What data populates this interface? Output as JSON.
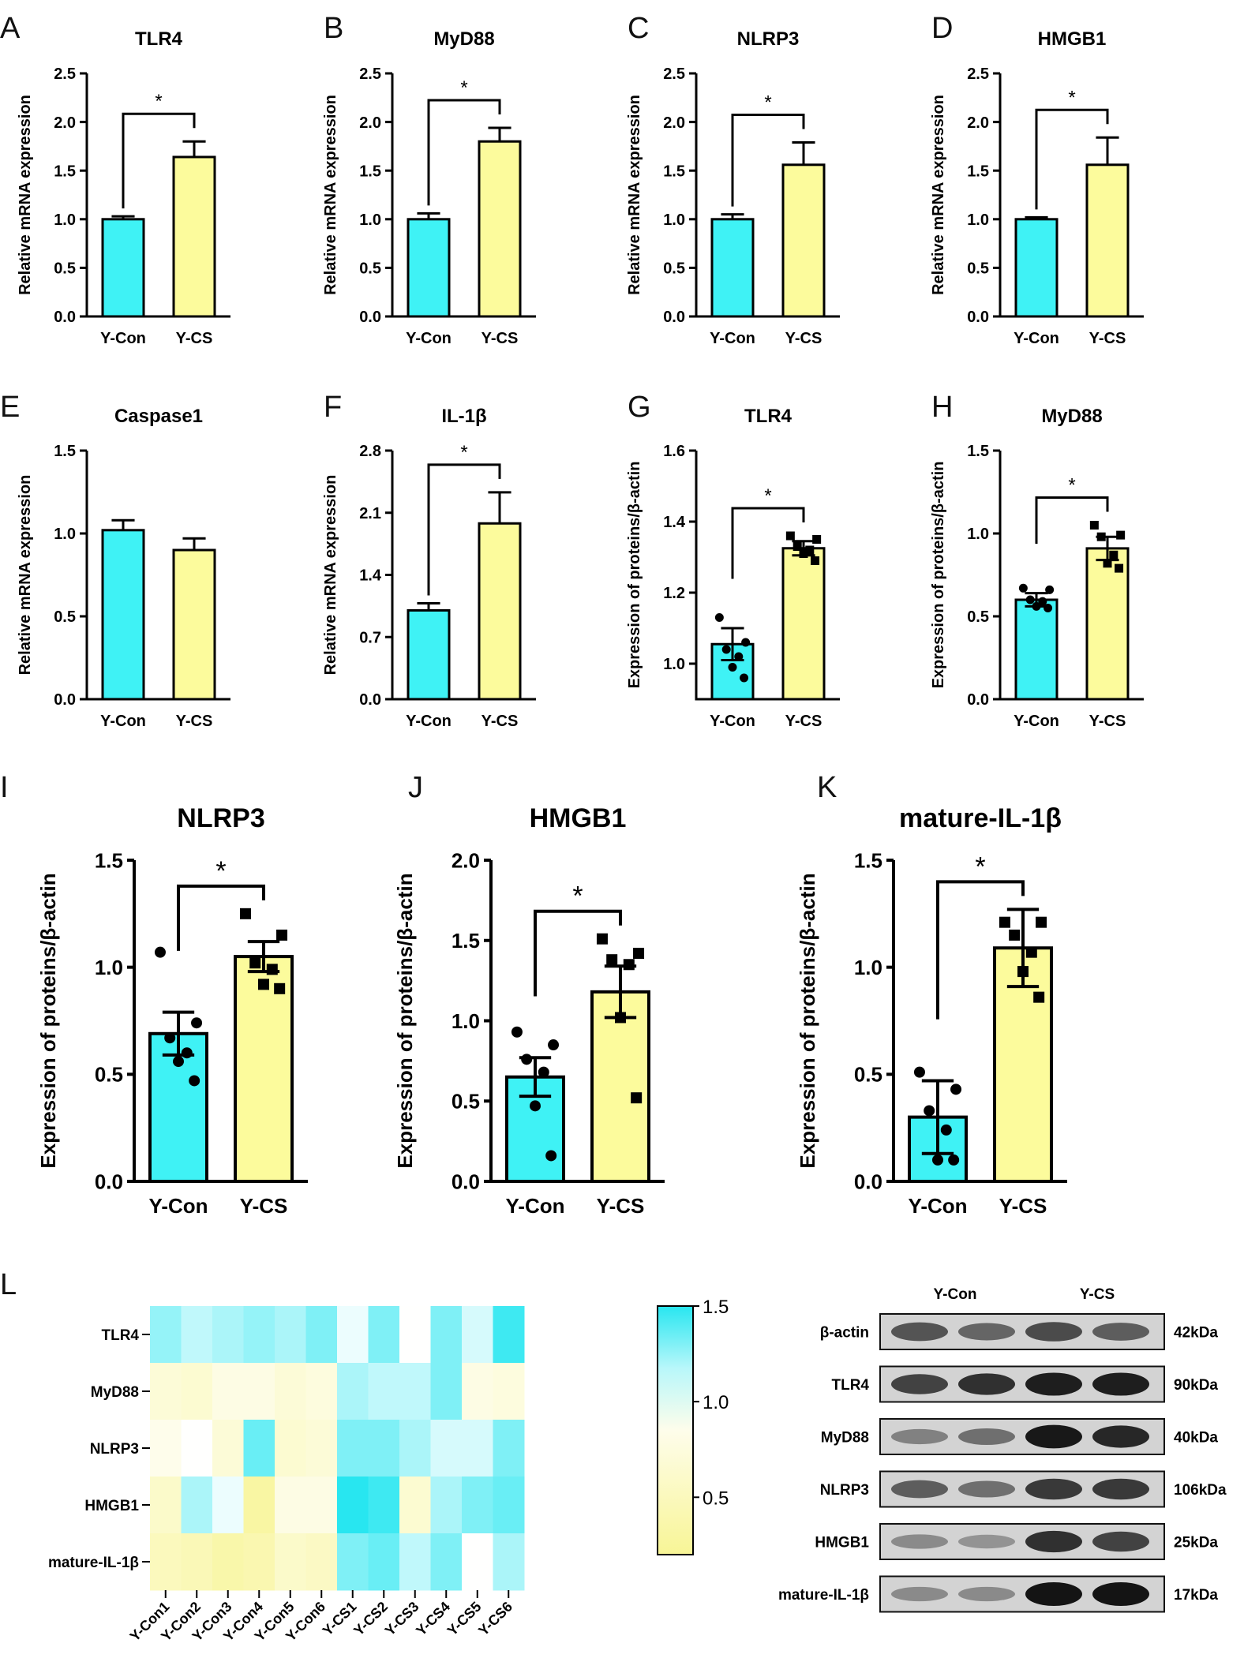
{
  "colors": {
    "con": "#3ff2f5",
    "cs": "#fcfb9c",
    "axis": "#000000"
  },
  "chart_data": [
    {
      "id": "A",
      "type": "bar",
      "title": "TLR4",
      "ylabel": "Relative mRNA expression",
      "ylim": [
        0,
        2.5
      ],
      "yticks": [
        "0.0",
        "0.5",
        "1.0",
        "1.5",
        "2.0",
        "2.5"
      ],
      "categories": [
        "Y-Con",
        "Y-CS"
      ],
      "values": [
        1.0,
        1.64
      ],
      "errors": [
        0.03,
        0.16
      ],
      "sig": "*"
    },
    {
      "id": "B",
      "type": "bar",
      "title": "MyD88",
      "ylabel": "Relative mRNA expression",
      "ylim": [
        0,
        2.5
      ],
      "yticks": [
        "0.0",
        "0.5",
        "1.0",
        "1.5",
        "2.0",
        "2.5"
      ],
      "categories": [
        "Y-Con",
        "Y-CS"
      ],
      "values": [
        1.0,
        1.8
      ],
      "errors": [
        0.06,
        0.14
      ],
      "sig": "*"
    },
    {
      "id": "C",
      "type": "bar",
      "title": "NLRP3",
      "ylabel": "Relative mRNA expression",
      "ylim": [
        0,
        2.5
      ],
      "yticks": [
        "0.0",
        "0.5",
        "1.0",
        "1.5",
        "2.0",
        "2.5"
      ],
      "categories": [
        "Y-Con",
        "Y-CS"
      ],
      "values": [
        1.0,
        1.56
      ],
      "errors": [
        0.05,
        0.23
      ],
      "sig": "*"
    },
    {
      "id": "D",
      "type": "bar",
      "title": "HMGB1",
      "ylabel": "Relative mRNA expression",
      "ylim": [
        0,
        2.5
      ],
      "yticks": [
        "0.0",
        "0.5",
        "1.0",
        "1.5",
        "2.0",
        "2.5"
      ],
      "categories": [
        "Y-Con",
        "Y-CS"
      ],
      "values": [
        1.0,
        1.56
      ],
      "errors": [
        0.02,
        0.28
      ],
      "sig": "*"
    },
    {
      "id": "E",
      "type": "bar",
      "title": "Caspase1",
      "ylabel": "Relative mRNA expression",
      "ylim": [
        0,
        1.5
      ],
      "yticks": [
        "0.0",
        "0.5",
        "1.0",
        "1.5"
      ],
      "categories": [
        "Y-Con",
        "Y-CS"
      ],
      "values": [
        1.02,
        0.9
      ],
      "errors": [
        0.06,
        0.07
      ],
      "sig": ""
    },
    {
      "id": "F",
      "type": "bar",
      "title": "IL-1β",
      "ylabel": "Relative mRNA expression",
      "ylim": [
        0,
        2.8
      ],
      "yticks": [
        "0.0",
        "0.7",
        "1.4",
        "2.1",
        "2.8"
      ],
      "categories": [
        "Y-Con",
        "Y-CS"
      ],
      "values": [
        1.0,
        1.98
      ],
      "errors": [
        0.08,
        0.35
      ],
      "sig": "*"
    },
    {
      "id": "G",
      "type": "bar",
      "title": "TLR4",
      "ylabel": "Expression of proteins/β-actin",
      "ylim": [
        0.9,
        1.6
      ],
      "yticks": [
        "1.0",
        "1.2",
        "1.4",
        "1.6"
      ],
      "categories": [
        "Y-Con",
        "Y-CS"
      ],
      "values": [
        1.055,
        1.325
      ],
      "errors": [
        0.045,
        0.02
      ],
      "sig": "*",
      "points": [
        [
          1.13,
          1.06,
          1.04,
          1.02,
          0.99,
          0.96
        ],
        [
          1.36,
          1.35,
          1.33,
          1.32,
          1.31,
          1.29
        ]
      ]
    },
    {
      "id": "H",
      "type": "bar",
      "title": "MyD88",
      "ylabel": "Expression of proteins/β-actin",
      "ylim": [
        0,
        1.5
      ],
      "yticks": [
        "0.0",
        "0.5",
        "1.0",
        "1.5"
      ],
      "categories": [
        "Y-Con",
        "Y-CS"
      ],
      "values": [
        0.6,
        0.91
      ],
      "errors": [
        0.04,
        0.07
      ],
      "sig": "*",
      "points": [
        [
          0.67,
          0.66,
          0.6,
          0.59,
          0.56,
          0.55
        ],
        [
          1.05,
          0.99,
          0.98,
          0.87,
          0.82,
          0.79
        ]
      ]
    },
    {
      "id": "I",
      "type": "bar",
      "title": "NLRP3",
      "ylabel": "Expression of proteins/β-actin",
      "ylim": [
        0,
        1.5
      ],
      "yticks": [
        "0.0",
        "0.5",
        "1.0",
        "1.5"
      ],
      "categories": [
        "Y-Con",
        "Y-CS"
      ],
      "values": [
        0.69,
        1.05
      ],
      "errors": [
        0.1,
        0.07
      ],
      "sig": "*",
      "points": [
        [
          1.07,
          0.74,
          0.67,
          0.6,
          0.56,
          0.47
        ],
        [
          1.25,
          1.15,
          1.02,
          0.99,
          0.92,
          0.9
        ]
      ]
    },
    {
      "id": "J",
      "type": "bar",
      "title": "HMGB1",
      "ylabel": "Expression of proteins/β-actin",
      "ylim": [
        0,
        2.0
      ],
      "yticks": [
        "0.0",
        "0.5",
        "1.0",
        "1.5",
        "2.0"
      ],
      "categories": [
        "Y-Con",
        "Y-CS"
      ],
      "values": [
        0.65,
        1.18
      ],
      "errors": [
        0.12,
        0.16
      ],
      "sig": "*",
      "points": [
        [
          0.93,
          0.85,
          0.76,
          0.68,
          0.47,
          0.16
        ],
        [
          1.51,
          1.42,
          1.38,
          1.35,
          1.02,
          0.52
        ]
      ]
    },
    {
      "id": "K",
      "type": "bar",
      "title": "mature-IL-1β",
      "ylabel": "Expression of proteins/β-actin",
      "ylim": [
        0,
        1.5
      ],
      "yticks": [
        "0.0",
        "0.5",
        "1.0",
        "1.5"
      ],
      "categories": [
        "Y-Con",
        "Y-CS"
      ],
      "values": [
        0.3,
        1.09
      ],
      "errors": [
        0.17,
        0.18
      ],
      "sig": "*",
      "points": [
        [
          0.51,
          0.43,
          0.33,
          0.24,
          0.1,
          0.1
        ],
        [
          1.21,
          1.21,
          1.15,
          1.07,
          0.98,
          0.86
        ]
      ]
    },
    {
      "id": "L",
      "type": "heatmap",
      "rows": [
        "TLR4",
        "MyD88",
        "NLRP3",
        "HMGB1",
        "mature-IL-1β"
      ],
      "columns": [
        "Y-Con1",
        "Y-Con2",
        "Y-Con3",
        "Y-Con4",
        "Y-Con5",
        "Y-Con6",
        "Y-CS1",
        "Y-CS2",
        "Y-CS3",
        "Y-CS4",
        "Y-CS5",
        "Y-CS6"
      ],
      "values": [
        [
          1.25,
          1.15,
          1.2,
          1.25,
          1.2,
          1.3,
          1.05,
          1.3,
          1.0,
          1.3,
          1.1,
          1.45
        ],
        [
          0.7,
          0.65,
          0.8,
          0.8,
          0.7,
          0.75,
          1.2,
          1.15,
          1.15,
          1.3,
          0.8,
          0.75
        ],
        [
          0.85,
          1.0,
          0.7,
          1.35,
          0.65,
          0.7,
          1.3,
          1.3,
          1.2,
          1.1,
          1.1,
          1.3
        ],
        [
          0.6,
          1.2,
          1.05,
          0.3,
          0.8,
          0.8,
          1.5,
          1.45,
          0.65,
          1.2,
          1.3,
          1.35
        ],
        [
          0.5,
          0.45,
          0.35,
          0.4,
          0.6,
          0.55,
          1.3,
          1.35,
          1.15,
          1.3,
          1.0,
          1.2
        ]
      ],
      "colorbar": {
        "min": 0.2,
        "max": 1.5,
        "ticks": [
          "1.5",
          "1.0",
          "0.5"
        ]
      }
    }
  ],
  "blot": {
    "label": "L",
    "groups": [
      "Y-Con",
      "Y-CS"
    ],
    "rows": [
      {
        "name": "β-actin",
        "kda": "42kDa",
        "band": [
          0.65,
          0.55,
          0.7,
          0.6
        ]
      },
      {
        "name": "TLR4",
        "kda": "90kDa",
        "band": [
          0.75,
          0.85,
          0.95,
          0.95
        ]
      },
      {
        "name": "MyD88",
        "kda": "40kDa",
        "band": [
          0.4,
          0.5,
          0.98,
          0.9
        ]
      },
      {
        "name": "NLRP3",
        "kda": "106kDa",
        "band": [
          0.6,
          0.5,
          0.8,
          0.8
        ]
      },
      {
        "name": "HMGB1",
        "kda": "25kDa",
        "band": [
          0.35,
          0.3,
          0.85,
          0.75
        ]
      },
      {
        "name": "mature-IL-1β",
        "kda": "17kDa",
        "band": [
          0.35,
          0.35,
          1.0,
          1.0
        ]
      }
    ]
  }
}
